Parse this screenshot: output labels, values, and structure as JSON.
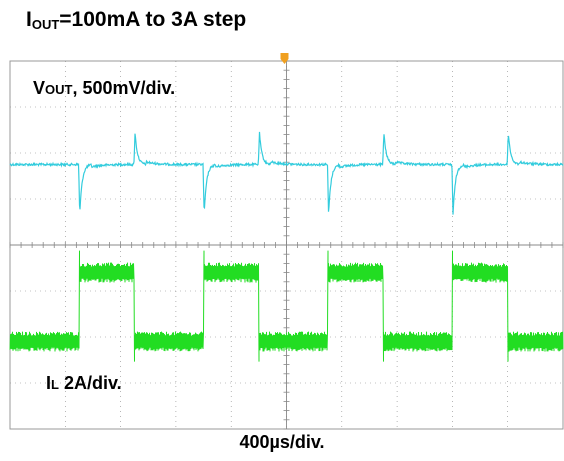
{
  "title": {
    "main": "I",
    "sub": "OUT",
    "rest": "=100mA to 3A step"
  },
  "colors": {
    "vout_trace": "#33ccdd",
    "il_trace": "#22dd22",
    "grid": "#888888",
    "trigger_marker": "#f0a020"
  },
  "chart_data": {
    "type": "line",
    "title": "IOUT=100mA to 3A step",
    "xlabel": "400µs/div.",
    "grid": true,
    "divisions": {
      "x": 10,
      "y": 8
    },
    "x_unit": "div",
    "x_range": [
      0,
      10
    ],
    "load_step_edges_div": [
      1.25,
      2.25,
      3.5,
      4.5,
      5.75,
      6.75,
      8.0,
      9.0
    ],
    "series": [
      {
        "name": "VOUT, 500mV/div.",
        "name_main": "V",
        "name_sub": "OUT",
        "name_rest": ", 500mV/div.",
        "scale": "500mV/div.",
        "baseline_div": 5.75,
        "undershoot_div": -1.1,
        "overshoot_div": 0.7,
        "events": [
          {
            "t_div": 1.25,
            "type": "undershoot"
          },
          {
            "t_div": 2.25,
            "type": "overshoot"
          },
          {
            "t_div": 3.5,
            "type": "undershoot"
          },
          {
            "t_div": 4.5,
            "type": "overshoot"
          },
          {
            "t_div": 5.75,
            "type": "undershoot"
          },
          {
            "t_div": 6.75,
            "type": "overshoot"
          },
          {
            "t_div": 8.0,
            "type": "undershoot"
          },
          {
            "t_div": 9.0,
            "type": "overshoot"
          }
        ]
      },
      {
        "name": "IL 2A/div.",
        "name_main": "I",
        "name_sub": "L",
        "name_rest": " 2A/div.",
        "scale": "2A/div.",
        "low_level_div": 1.9,
        "high_level_div": 3.4,
        "levels": [
          {
            "from_div": 0.0,
            "to_div": 1.25,
            "level": "low"
          },
          {
            "from_div": 1.25,
            "to_div": 2.25,
            "level": "high"
          },
          {
            "from_div": 2.25,
            "to_div": 3.5,
            "level": "low"
          },
          {
            "from_div": 3.5,
            "to_div": 4.5,
            "level": "high"
          },
          {
            "from_div": 4.5,
            "to_div": 5.75,
            "level": "low"
          },
          {
            "from_div": 5.75,
            "to_div": 6.75,
            "level": "high"
          },
          {
            "from_div": 6.75,
            "to_div": 8.0,
            "level": "low"
          },
          {
            "from_div": 8.0,
            "to_div": 9.0,
            "level": "high"
          },
          {
            "from_div": 9.0,
            "to_div": 10.0,
            "level": "low"
          }
        ]
      }
    ]
  }
}
